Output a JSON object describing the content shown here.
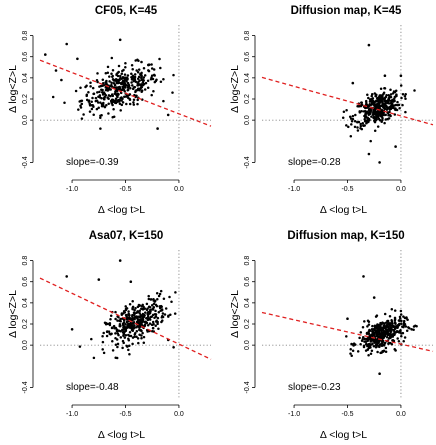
{
  "chart_data": [
    {
      "type": "scatter",
      "title": "CF05, K=45",
      "xlabel": "Δ <log t>L",
      "ylabel": "Δ log<Z>L",
      "xlim": [
        -1.3,
        0.3
      ],
      "ylim": [
        -0.5,
        0.9
      ],
      "xticks": [
        "-1.0",
        "-0.5",
        "0.0"
      ],
      "yticks": [
        "-0.4",
        "0.0",
        "0.2",
        "0.4",
        "0.6",
        "0.8"
      ],
      "annotation": "slope=-0.39",
      "fit": {
        "slope": -0.39,
        "intercept": 0.06,
        "color": "#e02020",
        "style": "dashed"
      },
      "reference_lines": {
        "x": 0.0,
        "y": 0.0
      },
      "cloud": {
        "cx": -0.55,
        "cy": 0.3,
        "sx": 0.18,
        "sy": 0.11,
        "r": 0.5
      },
      "outliers": [
        [
          -1.25,
          0.62
        ],
        [
          -1.05,
          0.72
        ],
        [
          -0.55,
          0.76
        ],
        [
          -0.95,
          0.58
        ],
        [
          -1.15,
          0.47
        ],
        [
          -0.35,
          0.55
        ],
        [
          -0.2,
          -0.08
        ],
        [
          -0.1,
          0.05
        ],
        [
          -1.1,
          0.38
        ]
      ]
    },
    {
      "type": "scatter",
      "title": "Diffusion map, K=45",
      "xlabel": "Δ <log t>L",
      "ylabel": "Δ log<Z>L",
      "xlim": [
        -1.3,
        0.3
      ],
      "ylim": [
        -0.5,
        0.9
      ],
      "xticks": [
        "-1.0",
        "-0.5",
        "0.0"
      ],
      "yticks": [
        "-0.4",
        "0.0",
        "0.2",
        "0.4",
        "0.6",
        "0.8"
      ],
      "annotation": "slope=-0.28",
      "fit": {
        "slope": -0.28,
        "intercept": 0.04,
        "color": "#e02020",
        "style": "dashed"
      },
      "reference_lines": {
        "x": 0.0,
        "y": 0.0
      },
      "cloud": {
        "cx": -0.22,
        "cy": 0.11,
        "sx": 0.11,
        "sy": 0.08,
        "r": 0.45
      },
      "outliers": [
        [
          -0.3,
          0.71
        ],
        [
          -0.3,
          -0.32
        ],
        [
          -0.2,
          -0.4
        ],
        [
          -0.15,
          0.42
        ],
        [
          -0.45,
          0.35
        ],
        [
          -0.05,
          -0.25
        ],
        [
          0.0,
          0.42
        ]
      ]
    },
    {
      "type": "scatter",
      "title": "Asa07, K=150",
      "xlabel": "Δ <log t>L",
      "ylabel": "Δ log<Z>L",
      "xlim": [
        -1.3,
        0.3
      ],
      "ylim": [
        -0.5,
        0.9
      ],
      "xticks": [
        "-1.0",
        "-0.5",
        "0.0"
      ],
      "yticks": [
        "-0.4",
        "0.0",
        "0.2",
        "0.4",
        "0.6",
        "0.8"
      ],
      "annotation": "slope=-0.48",
      "fit": {
        "slope": -0.48,
        "intercept": 0.01,
        "color": "#e02020",
        "style": "dashed"
      },
      "reference_lines": {
        "x": 0.0,
        "y": 0.0
      },
      "cloud": {
        "cx": -0.4,
        "cy": 0.22,
        "sx": 0.14,
        "sy": 0.11,
        "r": 0.6
      },
      "outliers": [
        [
          -1.05,
          0.65
        ],
        [
          -0.55,
          0.8
        ],
        [
          -0.75,
          0.62
        ],
        [
          -1.0,
          0.15
        ],
        [
          -0.45,
          0.6
        ],
        [
          -0.1,
          0.05
        ],
        [
          -0.05,
          -0.02
        ]
      ]
    },
    {
      "type": "scatter",
      "title": "Diffusion map, K=150",
      "xlabel": "Δ <log t>L",
      "ylabel": "Δ log<Z>L",
      "xlim": [
        -1.3,
        0.3
      ],
      "ylim": [
        -0.5,
        0.9
      ],
      "xticks": [
        "-1.0",
        "-0.5",
        "0.0"
      ],
      "yticks": [
        "-0.4",
        "0.0",
        "0.2",
        "0.4",
        "0.6",
        "0.8"
      ],
      "annotation": "slope=-0.23",
      "fit": {
        "slope": -0.23,
        "intercept": 0.01,
        "color": "#e02020",
        "style": "dashed"
      },
      "reference_lines": {
        "x": 0.0,
        "y": 0.0
      },
      "cloud": {
        "cx": -0.18,
        "cy": 0.1,
        "sx": 0.11,
        "sy": 0.08,
        "r": 0.45
      },
      "outliers": [
        [
          -0.35,
          0.65
        ],
        [
          -0.2,
          -0.27
        ],
        [
          -0.5,
          0.25
        ],
        [
          -0.05,
          -0.05
        ],
        [
          0.1,
          0.15
        ],
        [
          -0.25,
          0.45
        ]
      ]
    }
  ]
}
